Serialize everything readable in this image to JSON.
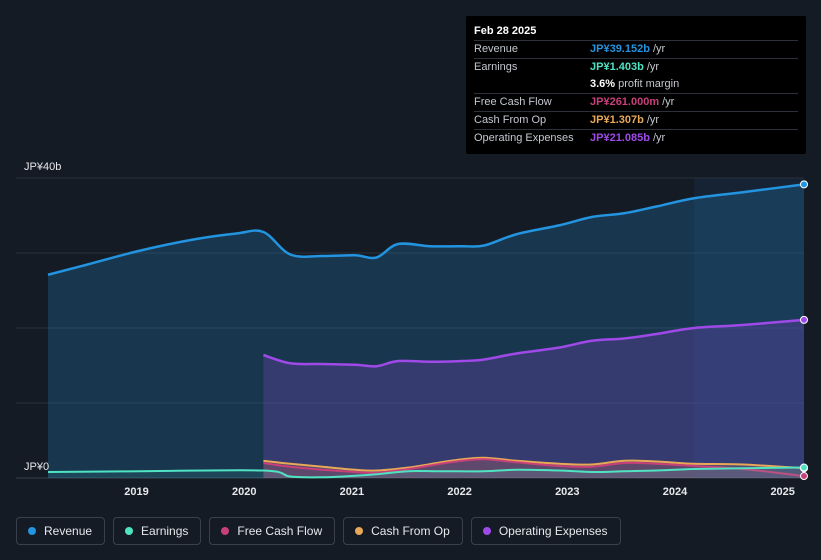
{
  "tooltip": {
    "date": "Feb 28 2025",
    "rows": {
      "revenue": {
        "label": "Revenue",
        "value": "JP¥39.152b",
        "unit": "/yr"
      },
      "earnings": {
        "label": "Earnings",
        "value": "JP¥1.403b",
        "unit": "/yr"
      },
      "margin": {
        "value": "3.6%",
        "unit": "profit margin"
      },
      "fcf": {
        "label": "Free Cash Flow",
        "value": "JP¥261.000m",
        "unit": "/yr"
      },
      "cfo": {
        "label": "Cash From Op",
        "value": "JP¥1.307b",
        "unit": "/yr"
      },
      "opex": {
        "label": "Operating Expenses",
        "value": "JP¥21.085b",
        "unit": "/yr"
      }
    }
  },
  "colors": {
    "revenue": "#2394df",
    "earnings": "#50e3c2",
    "fcf": "#c8407a",
    "cfo": "#e8a857",
    "opex": "#9f4ae8"
  },
  "legend": [
    {
      "key": "revenue",
      "label": "Revenue"
    },
    {
      "key": "earnings",
      "label": "Earnings"
    },
    {
      "key": "fcf",
      "label": "Free Cash Flow"
    },
    {
      "key": "cfo",
      "label": "Cash From Op"
    },
    {
      "key": "opex",
      "label": "Operating Expenses"
    }
  ],
  "chart_data": {
    "type": "area",
    "title": "",
    "xlabel": "",
    "ylabel": "",
    "y_unit": "JP¥ billions",
    "ylim": [
      0,
      40
    ],
    "xlim": [
      2018.15,
      2025.17
    ],
    "y_tick_labels": [
      {
        "value": 40,
        "label": "JP¥40b"
      },
      {
        "value": 0,
        "label": "JP¥0"
      }
    ],
    "x_tick_labels": [
      {
        "value": 2019,
        "label": "2019"
      },
      {
        "value": 2020,
        "label": "2020"
      },
      {
        "value": 2021,
        "label": "2021"
      },
      {
        "value": 2022,
        "label": "2022"
      },
      {
        "value": 2023,
        "label": "2023"
      },
      {
        "value": 2024,
        "label": "2024"
      },
      {
        "value": 2025,
        "label": "2025"
      }
    ],
    "highlight_from": 2024.15,
    "series": [
      {
        "key": "revenue",
        "name": "Revenue",
        "points": [
          [
            2018.15,
            27.1
          ],
          [
            2018.5,
            28.4
          ],
          [
            2019.0,
            30.3
          ],
          [
            2019.5,
            31.8
          ],
          [
            2019.9,
            32.6
          ],
          [
            2020.15,
            32.8
          ],
          [
            2020.4,
            29.8
          ],
          [
            2020.7,
            29.6
          ],
          [
            2021.0,
            29.7
          ],
          [
            2021.2,
            29.4
          ],
          [
            2021.4,
            31.2
          ],
          [
            2021.7,
            30.9
          ],
          [
            2022.0,
            30.9
          ],
          [
            2022.2,
            31.0
          ],
          [
            2022.5,
            32.5
          ],
          [
            2022.9,
            33.7
          ],
          [
            2023.2,
            34.8
          ],
          [
            2023.5,
            35.3
          ],
          [
            2023.8,
            36.2
          ],
          [
            2024.15,
            37.3
          ],
          [
            2024.6,
            38.1
          ],
          [
            2025.17,
            39.152
          ]
        ]
      },
      {
        "key": "opex",
        "name": "Operating Expenses",
        "points": [
          [
            2020.15,
            16.4
          ],
          [
            2020.4,
            15.3
          ],
          [
            2020.7,
            15.2
          ],
          [
            2021.0,
            15.1
          ],
          [
            2021.2,
            14.9
          ],
          [
            2021.4,
            15.6
          ],
          [
            2021.7,
            15.5
          ],
          [
            2022.0,
            15.6
          ],
          [
            2022.2,
            15.8
          ],
          [
            2022.5,
            16.6
          ],
          [
            2022.9,
            17.4
          ],
          [
            2023.2,
            18.3
          ],
          [
            2023.5,
            18.6
          ],
          [
            2023.8,
            19.2
          ],
          [
            2024.15,
            20.0
          ],
          [
            2024.6,
            20.4
          ],
          [
            2025.17,
            21.085
          ]
        ]
      },
      {
        "key": "cfo",
        "name": "Cash From Op",
        "points": [
          [
            2020.15,
            2.3
          ],
          [
            2020.4,
            1.9
          ],
          [
            2020.7,
            1.5
          ],
          [
            2021.0,
            1.1
          ],
          [
            2021.2,
            1.0
          ],
          [
            2021.5,
            1.4
          ],
          [
            2021.8,
            2.1
          ],
          [
            2022.0,
            2.5
          ],
          [
            2022.2,
            2.7
          ],
          [
            2022.5,
            2.3
          ],
          [
            2022.9,
            1.9
          ],
          [
            2023.2,
            1.8
          ],
          [
            2023.5,
            2.3
          ],
          [
            2023.8,
            2.2
          ],
          [
            2024.15,
            1.9
          ],
          [
            2024.6,
            1.8
          ],
          [
            2025.17,
            1.307
          ]
        ]
      },
      {
        "key": "fcf",
        "name": "Free Cash Flow",
        "points": [
          [
            2020.15,
            2.0
          ],
          [
            2020.4,
            1.5
          ],
          [
            2020.7,
            1.1
          ],
          [
            2021.0,
            0.8
          ],
          [
            2021.2,
            0.7
          ],
          [
            2021.5,
            1.2
          ],
          [
            2021.8,
            1.9
          ],
          [
            2022.0,
            2.3
          ],
          [
            2022.2,
            2.5
          ],
          [
            2022.5,
            2.1
          ],
          [
            2022.9,
            1.6
          ],
          [
            2023.2,
            1.5
          ],
          [
            2023.5,
            2.0
          ],
          [
            2023.8,
            1.9
          ],
          [
            2024.15,
            1.6
          ],
          [
            2024.6,
            1.2
          ],
          [
            2025.17,
            0.261
          ]
        ]
      },
      {
        "key": "earnings",
        "name": "Earnings",
        "points": [
          [
            2018.15,
            0.8
          ],
          [
            2019.0,
            0.9
          ],
          [
            2020.15,
            1.0
          ],
          [
            2020.4,
            0.2
          ],
          [
            2020.7,
            0.1
          ],
          [
            2021.0,
            0.3
          ],
          [
            2021.2,
            0.5
          ],
          [
            2021.5,
            0.9
          ],
          [
            2021.8,
            0.9
          ],
          [
            2022.2,
            0.9
          ],
          [
            2022.5,
            1.1
          ],
          [
            2022.9,
            1.0
          ],
          [
            2023.2,
            0.8
          ],
          [
            2023.5,
            0.9
          ],
          [
            2023.8,
            1.0
          ],
          [
            2024.15,
            1.2
          ],
          [
            2024.6,
            1.3
          ],
          [
            2025.17,
            1.403
          ]
        ]
      }
    ]
  }
}
